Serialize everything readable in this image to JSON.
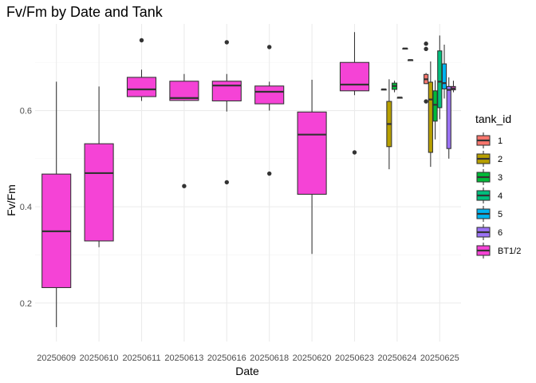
{
  "chart_data": {
    "type": "boxplot",
    "title": "Fv/Fm by Date and Tank",
    "xlabel": "Date",
    "ylabel": "Fv/Fm",
    "ylim": [
      0.12,
      0.78
    ],
    "y_ticks": [
      0.2,
      0.4,
      0.6
    ],
    "y_tick_labels": [
      "0.2",
      "0.4",
      "0.6"
    ],
    "categories": [
      "20250609",
      "20250610",
      "20250611",
      "20250613",
      "20250616",
      "20250618",
      "20250620",
      "20250623",
      "20250624",
      "20250625"
    ],
    "legend": {
      "title": "tank_id",
      "position": "right",
      "entries": [
        {
          "label": "1",
          "color": "#F8766D"
        },
        {
          "label": "2",
          "color": "#B79F00"
        },
        {
          "label": "3",
          "color": "#00BA38"
        },
        {
          "label": "4",
          "color": "#00BF7D"
        },
        {
          "label": "5",
          "color": "#00B4EF"
        },
        {
          "label": "6",
          "color": "#9B72F5"
        },
        {
          "label": "BT1/2",
          "color": "#F543D6"
        }
      ]
    },
    "boxes": [
      {
        "date": "20250609",
        "tank": "BT1/2",
        "min": 0.15,
        "q1": 0.232,
        "median": 0.349,
        "q3": 0.468,
        "max": 0.66,
        "outliers": []
      },
      {
        "date": "20250610",
        "tank": "BT1/2",
        "min": 0.316,
        "q1": 0.329,
        "median": 0.47,
        "q3": 0.531,
        "max": 0.65,
        "outliers": []
      },
      {
        "date": "20250611",
        "tank": "BT1/2",
        "min": 0.62,
        "q1": 0.629,
        "median": 0.644,
        "q3": 0.669,
        "max": 0.685,
        "outliers": [
          0.746
        ]
      },
      {
        "date": "20250613",
        "tank": "BT1/2",
        "min": 0.62,
        "q1": 0.621,
        "median": 0.626,
        "q3": 0.661,
        "max": 0.676,
        "outliers": [
          0.443
        ]
      },
      {
        "date": "20250616",
        "tank": "BT1/2",
        "min": 0.598,
        "q1": 0.62,
        "median": 0.652,
        "q3": 0.661,
        "max": 0.676,
        "outliers": [
          0.742,
          0.451
        ]
      },
      {
        "date": "20250618",
        "tank": "BT1/2",
        "min": 0.6,
        "q1": 0.614,
        "median": 0.639,
        "q3": 0.651,
        "max": 0.66,
        "outliers": [
          0.732,
          0.469
        ]
      },
      {
        "date": "20250620",
        "tank": "BT1/2",
        "min": 0.302,
        "q1": 0.426,
        "median": 0.55,
        "q3": 0.597,
        "max": 0.664,
        "outliers": []
      },
      {
        "date": "20250623",
        "tank": "BT1/2",
        "min": 0.632,
        "q1": 0.641,
        "median": 0.654,
        "q3": 0.7,
        "max": 0.763,
        "outliers": [
          0.513
        ]
      },
      {
        "date": "20250624",
        "tank": "1",
        "min": 0.644,
        "q1": 0.644,
        "median": 0.644,
        "q3": 0.644,
        "max": 0.644,
        "outliers": []
      },
      {
        "date": "20250624",
        "tank": "2",
        "min": 0.478,
        "q1": 0.525,
        "median": 0.572,
        "q3": 0.619,
        "max": 0.665,
        "outliers": []
      },
      {
        "date": "20250624",
        "tank": "3",
        "min": 0.638,
        "q1": 0.644,
        "median": 0.651,
        "q3": 0.657,
        "max": 0.662,
        "outliers": []
      },
      {
        "date": "20250624",
        "tank": "4",
        "min": 0.627,
        "q1": 0.627,
        "median": 0.627,
        "q3": 0.627,
        "max": 0.627,
        "outliers": []
      },
      {
        "date": "20250624",
        "tank": "5",
        "min": 0.729,
        "q1": 0.729,
        "median": 0.729,
        "q3": 0.729,
        "max": 0.729,
        "outliers": []
      },
      {
        "date": "20250624",
        "tank": "6",
        "min": 0.705,
        "q1": 0.705,
        "median": 0.705,
        "q3": 0.705,
        "max": 0.705,
        "outliers": []
      },
      {
        "date": "20250625",
        "tank": "1",
        "min": 0.655,
        "q1": 0.656,
        "median": 0.665,
        "q3": 0.675,
        "max": 0.678,
        "outliers": [
          0.739,
          0.728,
          0.619
        ]
      },
      {
        "date": "20250625",
        "tank": "2",
        "min": 0.483,
        "q1": 0.513,
        "median": 0.623,
        "q3": 0.659,
        "max": 0.702,
        "outliers": []
      },
      {
        "date": "20250625",
        "tank": "3",
        "min": 0.54,
        "q1": 0.578,
        "median": 0.612,
        "q3": 0.641,
        "max": 0.663,
        "outliers": []
      },
      {
        "date": "20250625",
        "tank": "4",
        "min": 0.582,
        "q1": 0.606,
        "median": 0.66,
        "q3": 0.724,
        "max": 0.756,
        "outliers": []
      },
      {
        "date": "20250625",
        "tank": "5",
        "min": 0.625,
        "q1": 0.645,
        "median": 0.657,
        "q3": 0.697,
        "max": 0.737,
        "outliers": []
      },
      {
        "date": "20250625",
        "tank": "6",
        "min": 0.5,
        "q1": 0.521,
        "median": 0.643,
        "q3": 0.65,
        "max": 0.669,
        "outliers": []
      },
      {
        "date": "20250625",
        "tank": "BT1/2",
        "min": 0.638,
        "q1": 0.643,
        "median": 0.646,
        "q3": 0.65,
        "max": 0.662,
        "outliers": []
      }
    ]
  }
}
